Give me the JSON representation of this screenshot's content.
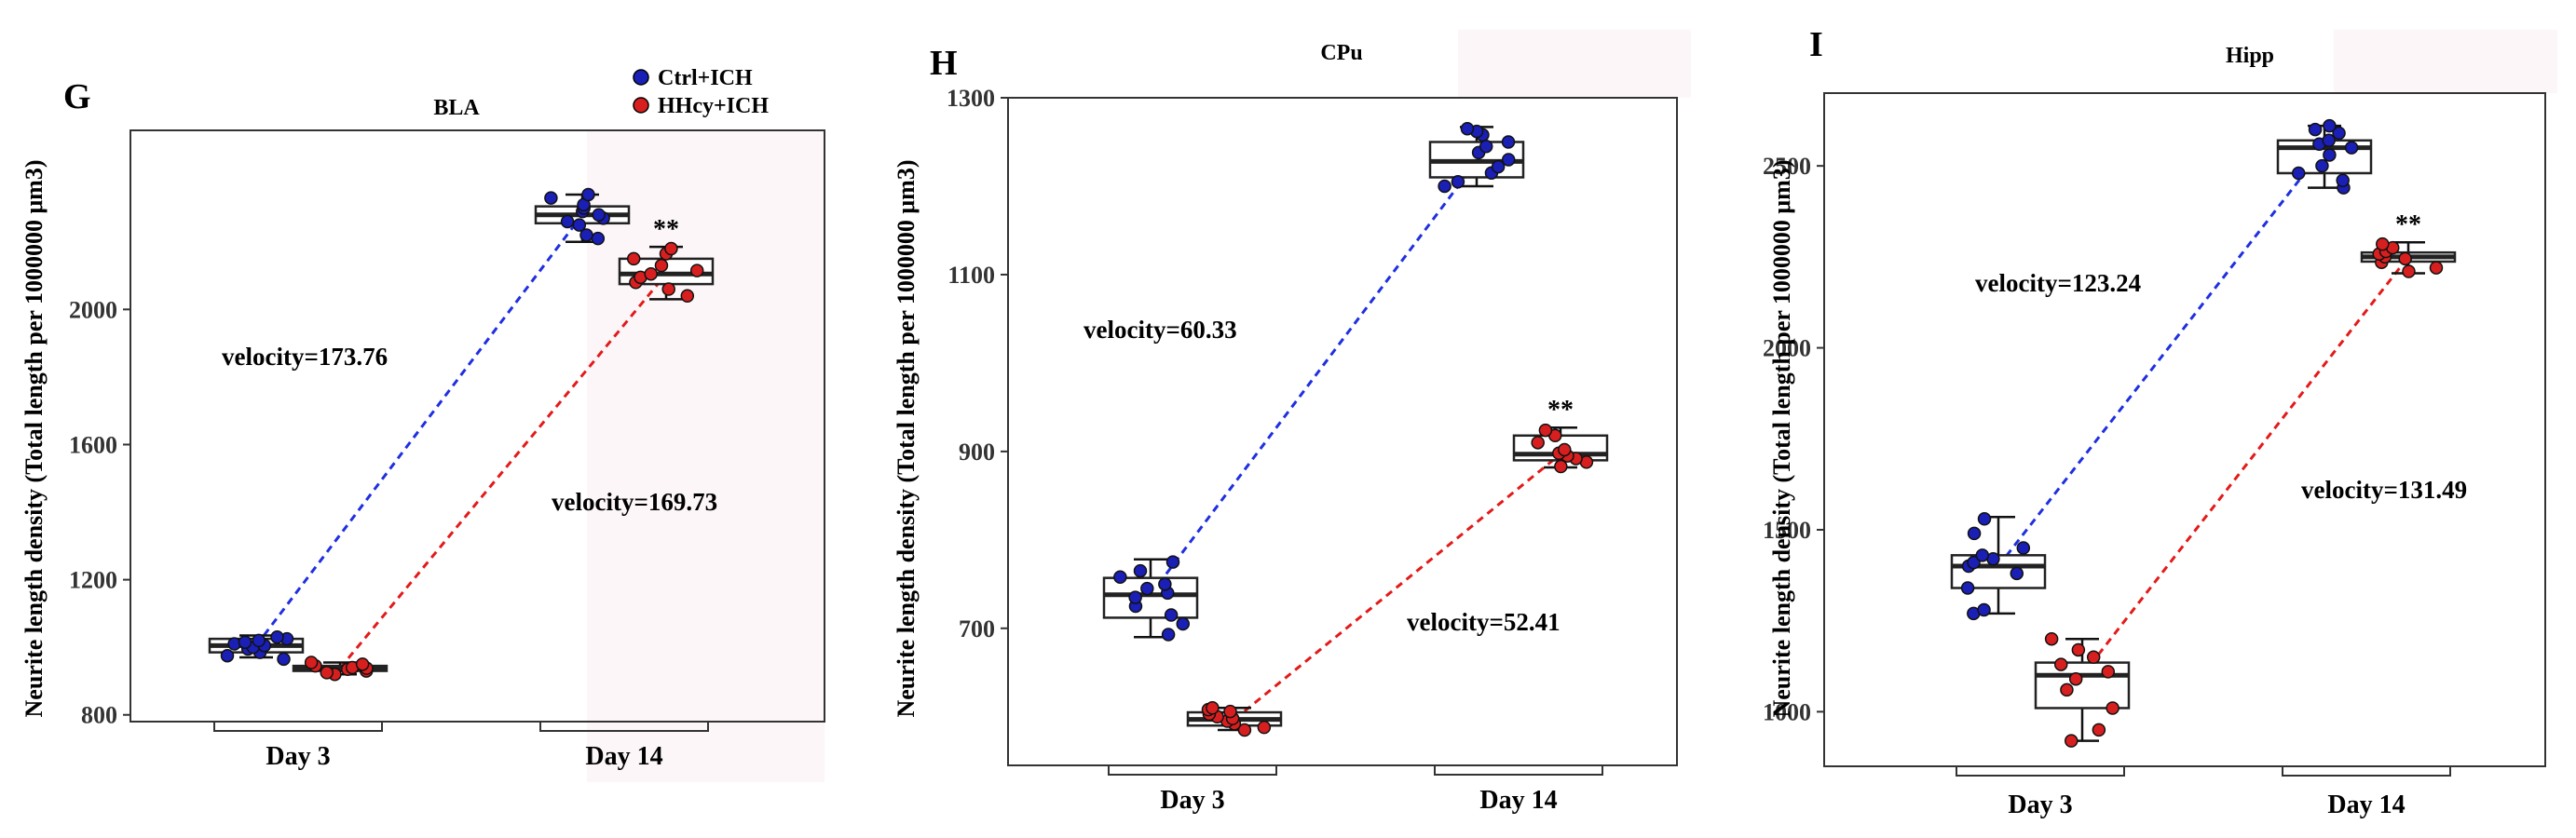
{
  "legend": {
    "items": [
      {
        "label": "Ctrl+ICH",
        "color": "#1a1fb5"
      },
      {
        "label": "HHcy+ICH",
        "color": "#d81f1f"
      }
    ]
  },
  "colors": {
    "ctrl": "#1a1fb5",
    "hhcy": "#d81f1f",
    "ctrl_line": "#1f2fe0",
    "hhcy_line": "#e31a1a"
  },
  "chart_data": [
    {
      "panel": "G",
      "type": "box",
      "title": "BLA",
      "ylabel": "Neurite length density (Total length per 1000000 μm3)",
      "categories": [
        "Day 3",
        "Day 14"
      ],
      "yticks": [
        800,
        1200,
        1600,
        2000
      ],
      "ylim": [
        780,
        2530
      ],
      "shaded_region": "right half",
      "series": [
        {
          "name": "Ctrl+ICH",
          "boxes": [
            {
              "x": "Day 3",
              "min": 970,
              "q1": 985,
              "median": 1005,
              "q3": 1025,
              "max": 1035,
              "points": [
                965,
                975,
                985,
                995,
                1000,
                1005,
                1010,
                1015,
                1020,
                1025,
                1030
              ]
            },
            {
              "x": "Day 14",
              "min": 2200,
              "q1": 2255,
              "median": 2280,
              "q3": 2305,
              "max": 2340,
              "points": [
                2210,
                2220,
                2250,
                2260,
                2270,
                2280,
                2290,
                2300,
                2310,
                2330,
                2340
              ]
            }
          ]
        },
        {
          "name": "HHcy+ICH",
          "boxes": [
            {
              "x": "Day 3",
              "min": 920,
              "q1": 930,
              "median": 938,
              "q3": 945,
              "max": 955,
              "points": [
                920,
                925,
                930,
                935,
                938,
                940,
                945,
                950,
                955
              ]
            },
            {
              "x": "Day 14",
              "min": 2030,
              "q1": 2075,
              "median": 2105,
              "q3": 2150,
              "max": 2185,
              "points": [
                2040,
                2060,
                2080,
                2095,
                2105,
                2115,
                2130,
                2150,
                2165,
                2180
              ]
            }
          ]
        }
      ],
      "velocities": [
        {
          "label": "velocity=173.76",
          "series": "Ctrl+ICH"
        },
        {
          "label": "velocity=169.73",
          "series": "HHcy+ICH"
        }
      ],
      "significance": "**"
    },
    {
      "panel": "H",
      "type": "box",
      "title": "CPu",
      "ylabel": "Neurite length density (Total length per 1000000 μm3)",
      "categories": [
        "Day 3",
        "Day 14"
      ],
      "yticks": [
        700,
        900,
        1100,
        1300
      ],
      "ylim": [
        545,
        1300
      ],
      "shaded_region": "upper-right corner",
      "series": [
        {
          "name": "Ctrl+ICH",
          "boxes": [
            {
              "x": "Day 3",
              "min": 690,
              "q1": 712,
              "median": 738,
              "q3": 757,
              "max": 778,
              "points": [
                693,
                705,
                715,
                725,
                735,
                740,
                745,
                750,
                758,
                765,
                775
              ]
            },
            {
              "x": "Day 14",
              "min": 1200,
              "q1": 1210,
              "median": 1228,
              "q3": 1250,
              "max": 1267,
              "points": [
                1200,
                1205,
                1215,
                1222,
                1230,
                1238,
                1245,
                1250,
                1258,
                1262,
                1265
              ]
            }
          ]
        },
        {
          "name": "HHcy+ICH",
          "boxes": [
            {
              "x": "Day 3",
              "min": 585,
              "q1": 590,
              "median": 597,
              "q3": 605,
              "max": 610,
              "points": [
                585,
                588,
                592,
                595,
                598,
                600,
                603,
                606,
                608,
                610
              ]
            },
            {
              "x": "Day 14",
              "min": 882,
              "q1": 890,
              "median": 897,
              "q3": 918,
              "max": 927,
              "points": [
                883,
                888,
                892,
                895,
                898,
                902,
                910,
                918,
                924
              ]
            }
          ]
        }
      ],
      "velocities": [
        {
          "label": "velocity=60.33",
          "series": "Ctrl+ICH"
        },
        {
          "label": "velocity=52.41",
          "series": "HHcy+ICH"
        }
      ],
      "significance": "**"
    },
    {
      "panel": "I",
      "type": "box",
      "title": "Hipp",
      "ylabel": "Neurite length density (Total length per 1000000 μm3)",
      "categories": [
        "Day 3",
        "Day 14"
      ],
      "yticks": [
        1000,
        1500,
        2000,
        2500
      ],
      "ylim": [
        850,
        2700
      ],
      "shaded_region": "upper-right corner",
      "series": [
        {
          "name": "Ctrl+ICH",
          "boxes": [
            {
              "x": "Day 3",
              "min": 1270,
              "q1": 1340,
              "median": 1400,
              "q3": 1430,
              "max": 1535,
              "points": [
                1270,
                1280,
                1340,
                1380,
                1400,
                1410,
                1420,
                1430,
                1450,
                1490,
                1530
              ]
            },
            {
              "x": "Day 14",
              "min": 2440,
              "q1": 2480,
              "median": 2550,
              "q3": 2570,
              "max": 2610,
              "points": [
                2440,
                2460,
                2480,
                2500,
                2530,
                2550,
                2560,
                2570,
                2590,
                2600,
                2610
              ]
            }
          ]
        },
        {
          "name": "HHcy+ICH",
          "boxes": [
            {
              "x": "Day 3",
              "min": 920,
              "q1": 1010,
              "median": 1100,
              "q3": 1135,
              "max": 1200,
              "points": [
                920,
                950,
                1010,
                1060,
                1090,
                1110,
                1130,
                1150,
                1170,
                1200
              ]
            },
            {
              "x": "Day 14",
              "min": 2205,
              "q1": 2237,
              "median": 2250,
              "q3": 2262,
              "max": 2290,
              "points": [
                2210,
                2220,
                2235,
                2245,
                2250,
                2258,
                2265,
                2275,
                2285
              ]
            }
          ]
        }
      ],
      "velocities": [
        {
          "label": "velocity=123.24",
          "series": "Ctrl+ICH"
        },
        {
          "label": "velocity=131.49",
          "series": "HHcy+ICH"
        }
      ],
      "significance": "**"
    }
  ]
}
